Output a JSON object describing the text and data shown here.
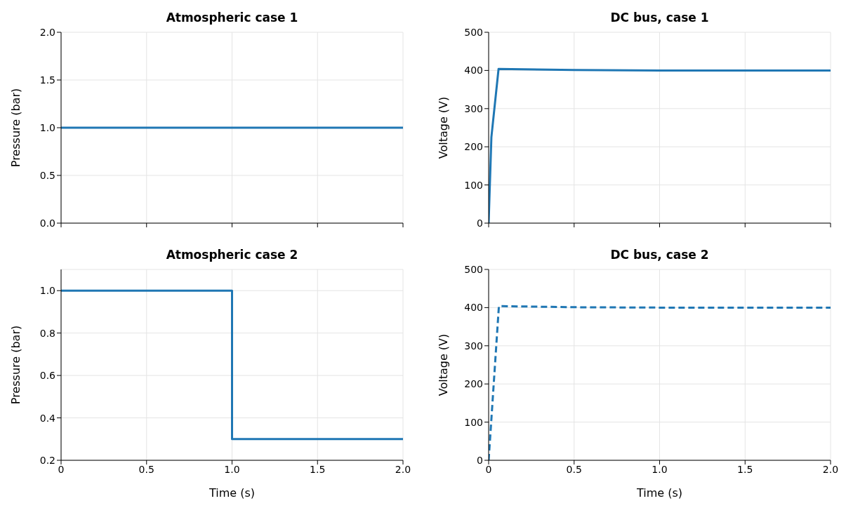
{
  "chart_data": [
    {
      "type": "line",
      "title": "Atmospheric case 1",
      "ylabel": "Pressure (bar)",
      "x": [
        0,
        2
      ],
      "values": [
        1,
        1
      ],
      "color": "#1f77b4",
      "xlim": [
        0,
        2
      ],
      "xticks": [
        {
          "value": 0,
          "label": null
        },
        {
          "value": 0.5,
          "label": null
        },
        {
          "value": 1,
          "label": null
        },
        {
          "value": 1.5,
          "label": null
        },
        {
          "value": 2,
          "label": null
        }
      ],
      "ylim": [
        0,
        2
      ],
      "yticks": [
        {
          "value": 0,
          "label": "0.0"
        },
        0.5,
        {
          "value": 1,
          "label": "1.0"
        },
        1.5,
        {
          "value": 2,
          "label": "2.0"
        }
      ],
      "grid": true,
      "tick_labels": "y"
    },
    {
      "type": "line",
      "title": "DC bus, case 1",
      "ylabel": "Voltage (V)",
      "x": [
        0,
        0.016,
        0.058,
        0.5,
        1,
        2
      ],
      "values": [
        0,
        225,
        404,
        401,
        400,
        400
      ],
      "color": "#1f77b4",
      "xlim": [
        0,
        2
      ],
      "xticks": [
        {
          "value": 0,
          "label": null
        },
        {
          "value": 0.5,
          "label": null
        },
        {
          "value": 1,
          "label": null
        },
        {
          "value": 1.5,
          "label": null
        },
        {
          "value": 2,
          "label": null
        }
      ],
      "ylim": [
        0,
        500
      ],
      "yticks": [
        0,
        100,
        200,
        300,
        400,
        500
      ],
      "grid": true,
      "tick_labels": "y"
    },
    {
      "type": "line",
      "title": "Atmospheric case 2",
      "xlabel": "Time (s)",
      "ylabel": "Pressure (bar)",
      "x": [
        0,
        1,
        1,
        2
      ],
      "values": [
        1,
        1,
        0.3,
        0.3
      ],
      "color": "#1f77b4",
      "xlim": [
        0,
        2
      ],
      "xticks": [
        0,
        0.5,
        {
          "value": 1,
          "label": "1.0"
        },
        1.5,
        {
          "value": 2,
          "label": "2.0"
        }
      ],
      "ylim": [
        0.2,
        1.1
      ],
      "yticks": [
        0.2,
        0.4,
        0.6,
        0.8,
        {
          "value": 1,
          "label": "1.0"
        }
      ],
      "grid": true
    },
    {
      "type": "line",
      "title": "DC bus, case 2",
      "xlabel": "Time (s)",
      "ylabel": "Voltage (V)",
      "x": [
        0,
        0.06,
        0.5,
        1,
        2
      ],
      "values": [
        0,
        404,
        401,
        400,
        400
      ],
      "color": "#1f77b4",
      "xlim": [
        0,
        2
      ],
      "xticks": [
        0,
        0.5,
        {
          "value": 1,
          "label": "1.0"
        },
        1.5,
        {
          "value": 2,
          "label": "2.0"
        }
      ],
      "ylim": [
        0,
        500
      ],
      "yticks": [
        0,
        100,
        200,
        300,
        400,
        500
      ],
      "grid": true,
      "line_style": "dashed"
    }
  ]
}
